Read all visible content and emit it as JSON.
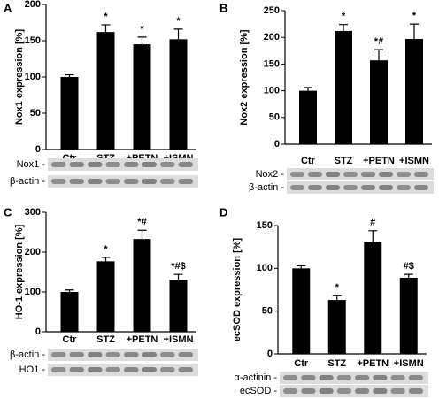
{
  "chart_data": [
    {
      "type": "bar",
      "panel": "A",
      "ylabel": "Nox1 expression [%]",
      "categories": [
        "Ctr",
        "STZ",
        "+PETN",
        "+ISMN"
      ],
      "values": [
        100,
        162,
        145,
        152
      ],
      "errors": [
        3,
        10,
        10,
        14
      ],
      "annotations": [
        null,
        "*",
        "*",
        "*"
      ],
      "color": "#000000",
      "ylim": [
        0,
        200
      ],
      "yticks": [
        0,
        50,
        100,
        150,
        200
      ],
      "blot_labels": [
        "Nox1 -",
        "β-actin -"
      ]
    },
    {
      "type": "bar",
      "panel": "B",
      "ylabel": "Nox2 expression [%]",
      "categories": [
        "Ctr",
        "STZ",
        "+PETN",
        "+ISMN"
      ],
      "values": [
        100,
        212,
        157,
        197
      ],
      "errors": [
        6,
        12,
        20,
        28
      ],
      "annotations": [
        null,
        "*",
        "*#",
        "*"
      ],
      "color": "#000000",
      "ylim": [
        0,
        250
      ],
      "yticks": [
        0,
        50,
        100,
        150,
        200,
        250
      ],
      "blot_labels": [
        "Nox2 -",
        "β-actin -"
      ]
    },
    {
      "type": "bar",
      "panel": "C",
      "ylabel": "HO-1 expression [%]",
      "categories": [
        "Ctr",
        "STZ",
        "+PETN",
        "+ISMN"
      ],
      "values": [
        100,
        177,
        233,
        131
      ],
      "errors": [
        5,
        10,
        22,
        13
      ],
      "annotations": [
        null,
        "*",
        "*#",
        "*#$"
      ],
      "color": "#000000",
      "ylim": [
        0,
        300
      ],
      "yticks": [
        0,
        100,
        200,
        300
      ],
      "blot_labels": [
        "β-actin -",
        "HO1 -"
      ]
    },
    {
      "type": "bar",
      "panel": "D",
      "ylabel": "ecSOD expression [%]",
      "categories": [
        "Ctr",
        "STZ",
        "+PETN",
        "+ISMN"
      ],
      "values": [
        100,
        63,
        131,
        89
      ],
      "errors": [
        3,
        5,
        13,
        4
      ],
      "annotations": [
        null,
        "*",
        "#",
        "#$"
      ],
      "color": "#000000",
      "ylim": [
        0,
        150
      ],
      "yticks": [
        0,
        50,
        100,
        150
      ],
      "blot_labels": [
        "α-actinin -",
        "ecSOD -"
      ]
    }
  ]
}
